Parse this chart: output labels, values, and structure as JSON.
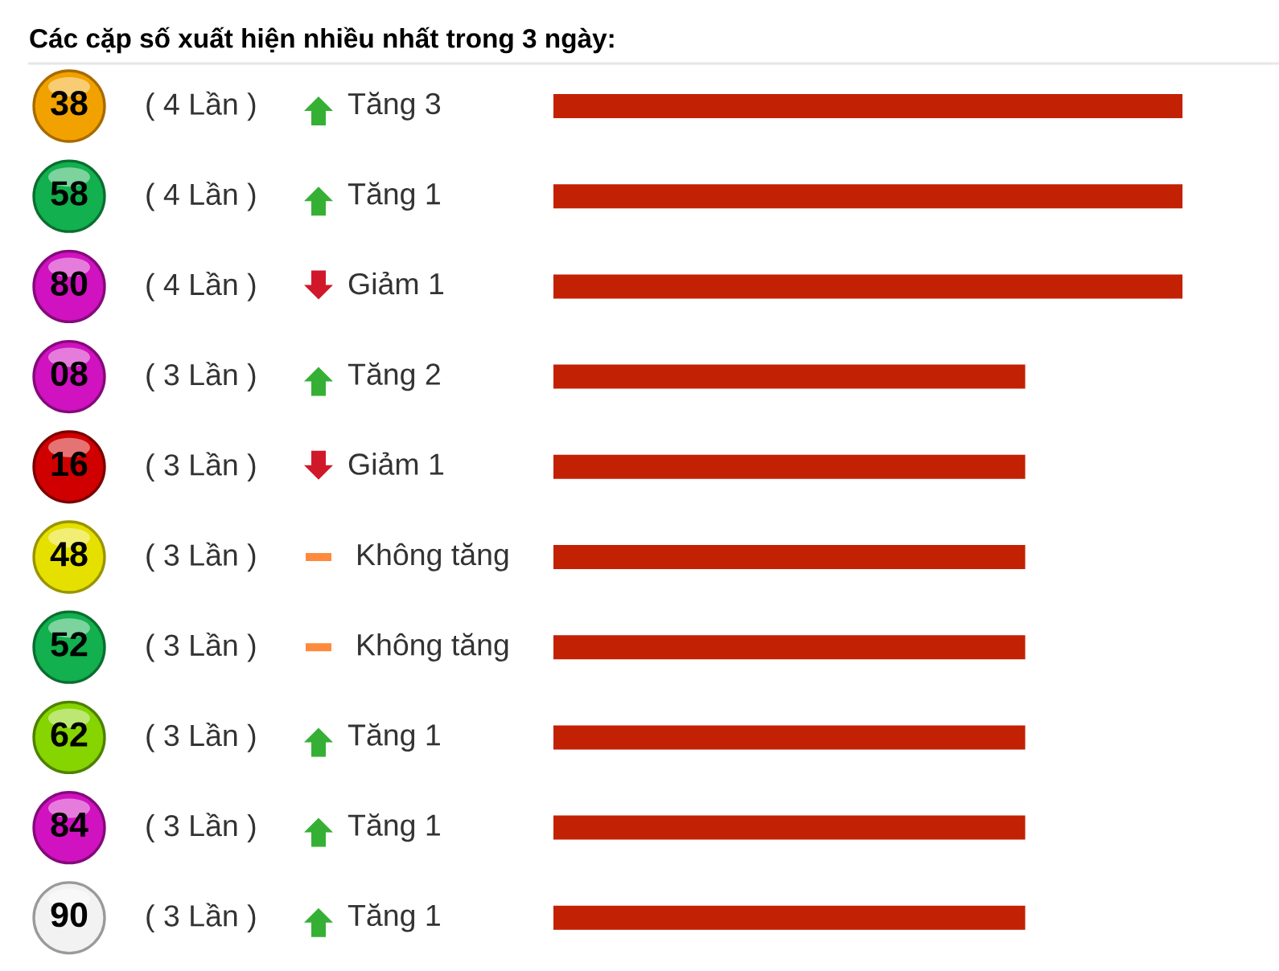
{
  "chart_data": {
    "type": "bar",
    "orientation": "horizontal",
    "title": "Các cặp số xuất hiện nhiều nhất trong 3 ngày:",
    "categories": [
      "38",
      "58",
      "80",
      "08",
      "16",
      "48",
      "52",
      "62",
      "84",
      "90"
    ],
    "values": [
      4,
      4,
      4,
      3,
      3,
      3,
      3,
      3,
      3,
      3
    ],
    "value_labels": [
      "( 4 Lần )",
      "( 4 Lần )",
      "( 4 Lần )",
      "( 3 Lần )",
      "( 3 Lần )",
      "( 3 Lần )",
      "( 3 Lần )",
      "( 3 Lần )",
      "( 3 Lần )",
      "( 3 Lần )"
    ],
    "color": "#c32104",
    "annotations": [
      "Tăng 3",
      "Tăng 1",
      "Giảm 1",
      "Tăng 2",
      "Giảm 1",
      "Không tăng",
      "Không tăng",
      "Tăng 1",
      "Tăng 1",
      "Tăng 1"
    ],
    "tick_labels": "y"
  }
}
